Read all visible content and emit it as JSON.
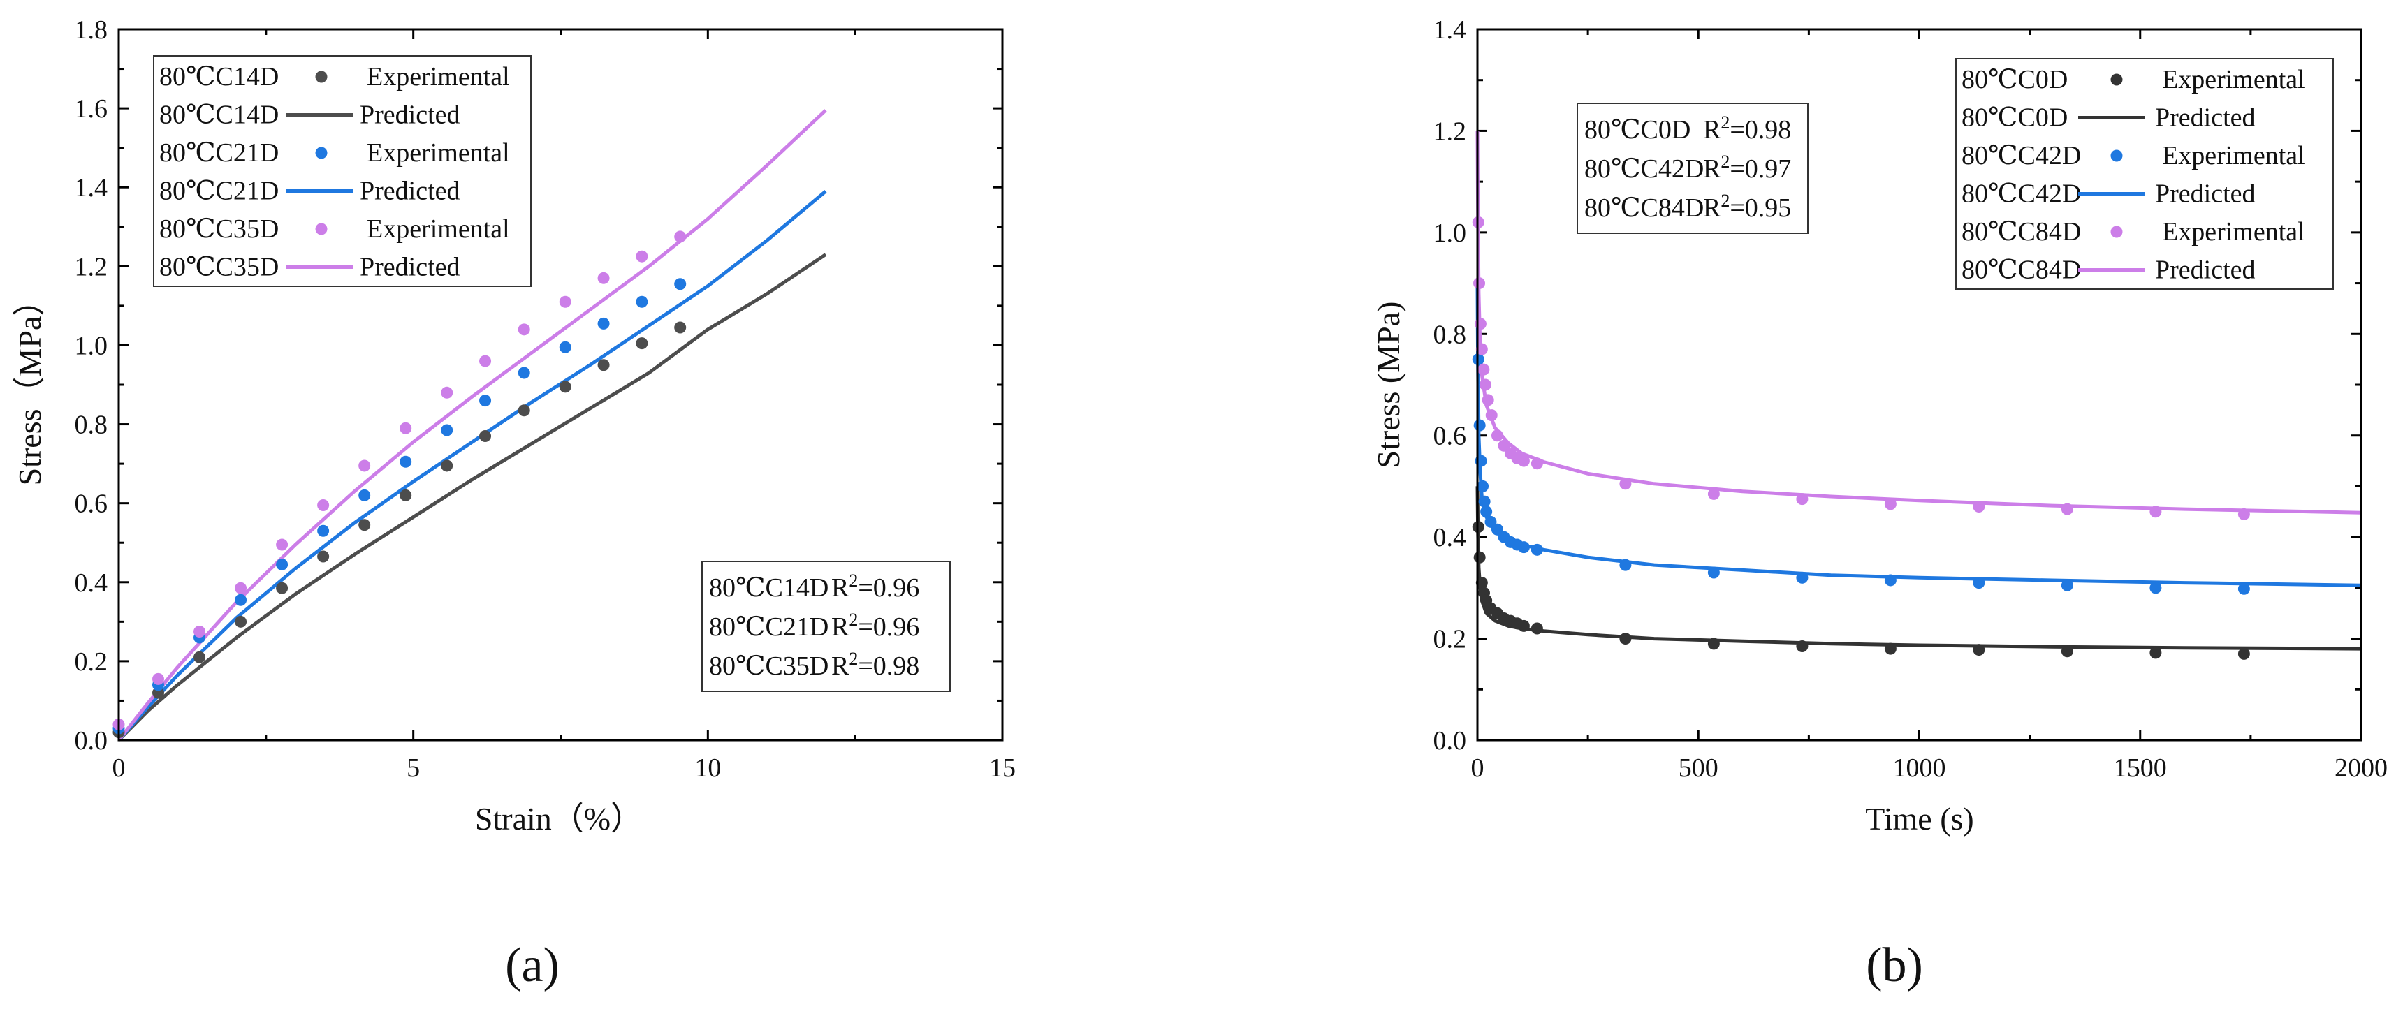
{
  "chart_data": [
    {
      "type": "scatter",
      "panel": "a",
      "panel_label": "(a)",
      "xlabel": "Strain（%）",
      "ylabel": "Stress（MPa）",
      "xlim": [
        0,
        15
      ],
      "ylim": [
        0,
        1.8
      ],
      "xticks": [
        "0",
        "5",
        "10",
        "15"
      ],
      "yticks": [
        "0.0",
        "0.2",
        "0.4",
        "0.6",
        "0.8",
        "1.0",
        "1.2",
        "1.4",
        "1.6",
        "1.8"
      ],
      "legend_position": "top-left",
      "r2_box_position": "bottom-right",
      "legend": [
        {
          "label": "80℃C14D",
          "kind": "Experimental",
          "series": "C14D"
        },
        {
          "label": "80℃C14D",
          "kind": "Predicted",
          "series": "C14D"
        },
        {
          "label": "80℃C21D",
          "kind": "Experimental",
          "series": "C21D"
        },
        {
          "label": "80℃C21D",
          "kind": "Predicted",
          "series": "C21D"
        },
        {
          "label": "80℃C35D",
          "kind": "Experimental",
          "series": "C35D"
        },
        {
          "label": "80℃C35D",
          "kind": "Predicted",
          "series": "C35D"
        }
      ],
      "r2": [
        {
          "label": "80℃C14D",
          "value": "0.96"
        },
        {
          "label": "80℃C21D",
          "value": "0.96"
        },
        {
          "label": "80℃C35D",
          "value": "0.98"
        }
      ],
      "series": [
        {
          "name": "C14D",
          "color": "#4d4d4d",
          "experimental": {
            "x": [
              0,
              0.67,
              1.37,
              2.07,
              2.77,
              3.47,
              4.17,
              4.87,
              5.57,
              6.22,
              6.88,
              7.58,
              8.23,
              8.88,
              9.53
            ],
            "y": [
              0.02,
              0.12,
              0.21,
              0.3,
              0.385,
              0.465,
              0.545,
              0.62,
              0.695,
              0.77,
              0.835,
              0.895,
              0.95,
              1.005,
              1.045
            ]
          },
          "predicted": {
            "x": [
              0,
              0.5,
              1,
              2,
              3,
              4,
              5,
              6,
              7,
              8,
              9,
              10,
              11,
              12
            ],
            "y": [
              0,
              0.075,
              0.14,
              0.26,
              0.37,
              0.47,
              0.565,
              0.66,
              0.75,
              0.84,
              0.93,
              1.04,
              1.13,
              1.23
            ]
          }
        },
        {
          "name": "C21D",
          "color": "#1f78e0",
          "experimental": {
            "x": [
              0,
              0.67,
              1.37,
              2.07,
              2.77,
              3.47,
              4.17,
              4.87,
              5.57,
              6.22,
              6.88,
              7.58,
              8.23,
              8.88,
              9.53
            ],
            "y": [
              0.03,
              0.14,
              0.26,
              0.355,
              0.445,
              0.53,
              0.62,
              0.705,
              0.785,
              0.86,
              0.93,
              0.995,
              1.055,
              1.11,
              1.155
            ]
          },
          "predicted": {
            "x": [
              0,
              0.5,
              1,
              2,
              3,
              4,
              5,
              6,
              7,
              8,
              9,
              10,
              11,
              12
            ],
            "y": [
              0,
              0.085,
              0.165,
              0.31,
              0.435,
              0.55,
              0.655,
              0.755,
              0.855,
              0.95,
              1.05,
              1.15,
              1.265,
              1.39
            ]
          }
        },
        {
          "name": "C35D",
          "color": "#cc7ee8",
          "experimental": {
            "x": [
              0,
              0.67,
              1.37,
              2.07,
              2.77,
              3.47,
              4.17,
              4.87,
              5.57,
              6.22,
              6.88,
              7.58,
              8.23,
              8.88,
              9.53
            ],
            "y": [
              0.04,
              0.155,
              0.275,
              0.385,
              0.495,
              0.595,
              0.695,
              0.79,
              0.88,
              0.96,
              1.04,
              1.11,
              1.17,
              1.225,
              1.275
            ]
          },
          "predicted": {
            "x": [
              0,
              0.5,
              1,
              2,
              3,
              4,
              5,
              6,
              7,
              8,
              9,
              10,
              11,
              12
            ],
            "y": [
              0,
              0.095,
              0.185,
              0.35,
              0.495,
              0.63,
              0.755,
              0.87,
              0.98,
              1.09,
              1.2,
              1.32,
              1.455,
              1.595
            ]
          }
        }
      ]
    },
    {
      "type": "scatter",
      "panel": "b",
      "panel_label": "(b)",
      "xlabel": "Time (s)",
      "ylabel": "Stress (MPa)",
      "xlim": [
        0,
        2000
      ],
      "ylim": [
        0,
        1.4
      ],
      "xticks": [
        "0",
        "500",
        "1000",
        "1500",
        "2000"
      ],
      "yticks": [
        "0.0",
        "0.2",
        "0.4",
        "0.6",
        "0.8",
        "1.0",
        "1.2",
        "1.4"
      ],
      "legend_position": "top-right",
      "r2_box_position": "top-center",
      "legend": [
        {
          "label": "80℃C0D",
          "kind": "Experimental",
          "series": "C0D"
        },
        {
          "label": "80℃C0D",
          "kind": "Predicted",
          "series": "C0D"
        },
        {
          "label": "80℃C42D",
          "kind": "Experimental",
          "series": "C42D"
        },
        {
          "label": "80℃C42D",
          "kind": "Predicted",
          "series": "C42D"
        },
        {
          "label": "80℃C84D",
          "kind": "Experimental",
          "series": "C84D"
        },
        {
          "label": "80℃C84D",
          "kind": "Predicted",
          "series": "C84D"
        }
      ],
      "r2": [
        {
          "label": "80℃C0D",
          "value": "0.98"
        },
        {
          "label": "80℃C42D",
          "value": "0.97"
        },
        {
          "label": "80℃C84D",
          "value": "0.95"
        }
      ],
      "series": [
        {
          "name": "C0D",
          "color": "#333333",
          "experimental": {
            "x": [
              2,
              5,
              10,
              15,
              20,
              30,
              45,
              60,
              75,
              90,
              105,
              135,
              335,
              535,
              735,
              935,
              1135,
              1335,
              1535,
              1735
            ],
            "y": [
              0.42,
              0.36,
              0.31,
              0.29,
              0.275,
              0.26,
              0.25,
              0.24,
              0.235,
              0.23,
              0.225,
              0.22,
              0.2,
              0.19,
              0.185,
              0.18,
              0.178,
              0.175,
              0.172,
              0.17
            ]
          },
          "predicted": {
            "x": [
              0,
              1,
              3,
              6,
              10,
              20,
              40,
              70,
              100,
              150,
              250,
              400,
              600,
              800,
              1000,
              1300,
              1600,
              2000
            ],
            "y": [
              0.5,
              0.42,
              0.34,
              0.3,
              0.275,
              0.25,
              0.235,
              0.225,
              0.22,
              0.215,
              0.208,
              0.2,
              0.195,
              0.19,
              0.187,
              0.184,
              0.182,
              0.18
            ]
          }
        },
        {
          "name": "C42D",
          "color": "#1f78e0",
          "experimental": {
            "x": [
              2,
              5,
              8,
              12,
              16,
              20,
              30,
              45,
              60,
              75,
              90,
              105,
              135,
              335,
              535,
              735,
              935,
              1135,
              1335,
              1535,
              1735
            ],
            "y": [
              0.75,
              0.62,
              0.55,
              0.5,
              0.47,
              0.45,
              0.43,
              0.415,
              0.4,
              0.39,
              0.385,
              0.38,
              0.375,
              0.345,
              0.33,
              0.32,
              0.315,
              0.31,
              0.305,
              0.3,
              0.298
            ]
          },
          "predicted": {
            "x": [
              0,
              1,
              3,
              6,
              10,
              20,
              40,
              70,
              100,
              150,
              250,
              400,
              600,
              800,
              1000,
              1300,
              1600,
              2000
            ],
            "y": [
              0.9,
              0.75,
              0.6,
              0.53,
              0.48,
              0.44,
              0.41,
              0.395,
              0.385,
              0.375,
              0.36,
              0.345,
              0.335,
              0.325,
              0.32,
              0.315,
              0.31,
              0.305
            ]
          }
        },
        {
          "name": "C84D",
          "color": "#cc7ee8",
          "experimental": {
            "x": [
              2,
              4,
              7,
              10,
              14,
              18,
              24,
              32,
              45,
              60,
              75,
              90,
              105,
              135,
              335,
              535,
              735,
              935,
              1135,
              1335,
              1535,
              1735
            ],
            "y": [
              1.02,
              0.9,
              0.82,
              0.77,
              0.73,
              0.7,
              0.67,
              0.64,
              0.6,
              0.58,
              0.565,
              0.555,
              0.55,
              0.545,
              0.505,
              0.485,
              0.475,
              0.465,
              0.46,
              0.455,
              0.45,
              0.445
            ]
          },
          "predicted": {
            "x": [
              0,
              1,
              3,
              6,
              10,
              20,
              40,
              70,
              100,
              150,
              250,
              400,
              600,
              800,
              1000,
              1300,
              1600,
              2000
            ],
            "y": [
              1.2,
              1.05,
              0.88,
              0.78,
              0.72,
              0.66,
              0.615,
              0.585,
              0.565,
              0.548,
              0.525,
              0.505,
              0.49,
              0.48,
              0.472,
              0.462,
              0.455,
              0.448
            ]
          }
        }
      ]
    }
  ]
}
